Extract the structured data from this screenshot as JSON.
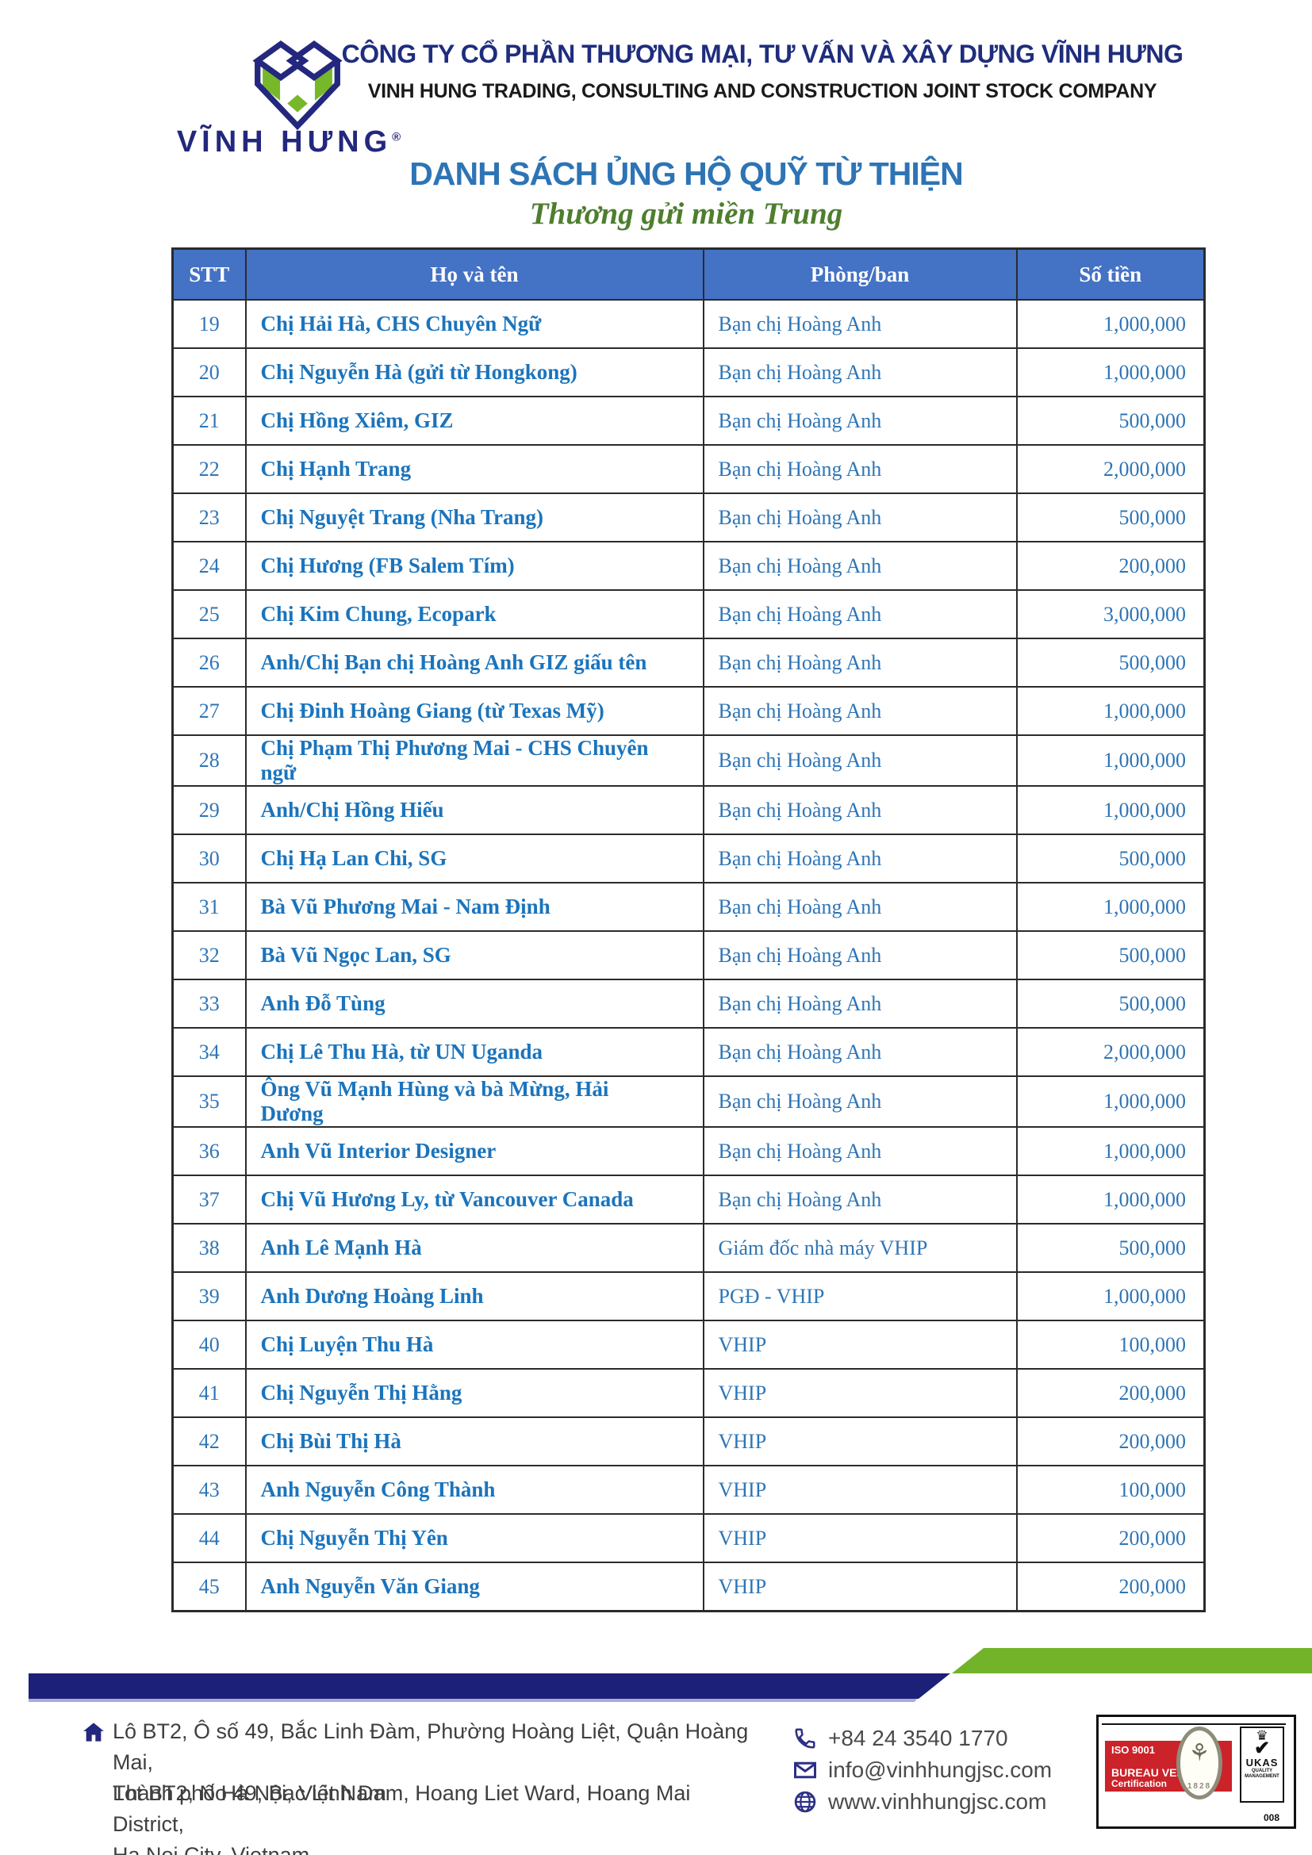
{
  "header": {
    "company_name_vi": "CÔNG TY CỔ PHẦN THƯƠNG MẠI, TƯ VẤN VÀ XÂY DỰNG VĨNH HƯNG",
    "company_name_en": "VINH HUNG TRADING, CONSULTING AND CONSTRUCTION JOINT STOCK COMPANY",
    "logo_text": "VĨNH HƯNG",
    "registered_mark": "®"
  },
  "title": "DANH SÁCH ỦNG HỘ QUỸ TỪ THIỆN",
  "subtitle": "Thương gửi miền Trung",
  "table": {
    "columns": [
      "STT",
      "Họ và tên",
      "Phòng/ban",
      "Số tiền"
    ],
    "rows": [
      {
        "stt": "19",
        "name": "Chị Hải Hà, CHS Chuyên Ngữ",
        "dept": "Bạn chị Hoàng Anh",
        "amount": "1,000,000"
      },
      {
        "stt": "20",
        "name": "Chị Nguyễn Hà (gửi từ Hongkong)",
        "dept": "Bạn chị Hoàng Anh",
        "amount": "1,000,000"
      },
      {
        "stt": "21",
        "name": "Chị Hồng Xiêm, GIZ",
        "dept": "Bạn chị Hoàng Anh",
        "amount": "500,000"
      },
      {
        "stt": "22",
        "name": "Chị Hạnh Trang",
        "dept": "Bạn chị Hoàng Anh",
        "amount": "2,000,000"
      },
      {
        "stt": "23",
        "name": "Chị Nguyệt Trang (Nha Trang)",
        "dept": "Bạn chị Hoàng Anh",
        "amount": "500,000"
      },
      {
        "stt": "24",
        "name": "Chị Hương (FB Salem Tím)",
        "dept": "Bạn chị Hoàng Anh",
        "amount": "200,000"
      },
      {
        "stt": "25",
        "name": "Chị Kim Chung, Ecopark",
        "dept": "Bạn chị Hoàng Anh",
        "amount": "3,000,000"
      },
      {
        "stt": "26",
        "name": "Anh/Chị Bạn chị Hoàng Anh GIZ giấu tên",
        "dept": "Bạn chị Hoàng Anh",
        "amount": "500,000"
      },
      {
        "stt": "27",
        "name": "Chị Đinh Hoàng Giang (từ Texas Mỹ)",
        "dept": "Bạn chị Hoàng Anh",
        "amount": "1,000,000"
      },
      {
        "stt": "28",
        "name": "Chị Phạm Thị Phương Mai - CHS Chuyên ngữ",
        "dept": "Bạn chị Hoàng Anh",
        "amount": "1,000,000"
      },
      {
        "stt": "29",
        "name": "Anh/Chị Hồng Hiếu",
        "dept": "Bạn chị Hoàng Anh",
        "amount": "1,000,000"
      },
      {
        "stt": "30",
        "name": "Chị Hạ Lan Chi, SG",
        "dept": "Bạn chị Hoàng Anh",
        "amount": "500,000"
      },
      {
        "stt": "31",
        "name": "Bà Vũ Phương Mai - Nam Định",
        "dept": "Bạn chị Hoàng Anh",
        "amount": "1,000,000"
      },
      {
        "stt": "32",
        "name": "Bà Vũ Ngọc Lan, SG",
        "dept": "Bạn chị Hoàng Anh",
        "amount": "500,000"
      },
      {
        "stt": "33",
        "name": "Anh Đỗ Tùng",
        "dept": "Bạn chị Hoàng Anh",
        "amount": "500,000"
      },
      {
        "stt": "34",
        "name": "Chị Lê Thu Hà, từ UN Uganda",
        "dept": "Bạn chị Hoàng Anh",
        "amount": "2,000,000"
      },
      {
        "stt": "35",
        "name": "Ông Vũ Mạnh Hùng và bà Mừng, Hải Dương",
        "dept": "Bạn chị Hoàng Anh",
        "amount": "1,000,000"
      },
      {
        "stt": "36",
        "name": "Anh Vũ Interior Designer",
        "dept": "Bạn chị Hoàng Anh",
        "amount": "1,000,000"
      },
      {
        "stt": "37",
        "name": "Chị Vũ Hương Ly, từ Vancouver Canada",
        "dept": "Bạn chị Hoàng Anh",
        "amount": "1,000,000"
      },
      {
        "stt": "38",
        "name": "Anh Lê Mạnh Hà",
        "dept": "Giám đốc nhà máy VHIP",
        "amount": "500,000"
      },
      {
        "stt": "39",
        "name": "Anh Dương Hoàng Linh",
        "dept": "PGĐ - VHIP",
        "amount": "1,000,000"
      },
      {
        "stt": "40",
        "name": "Chị Luyện Thu Hà",
        "dept": "VHIP",
        "amount": "100,000"
      },
      {
        "stt": "41",
        "name": "Chị Nguyễn Thị Hằng",
        "dept": "VHIP",
        "amount": "200,000"
      },
      {
        "stt": "42",
        "name": "Chị Bùi Thị Hà",
        "dept": "VHIP",
        "amount": "200,000"
      },
      {
        "stt": "43",
        "name": "Anh Nguyễn Công Thành",
        "dept": "VHIP",
        "amount": "100,000"
      },
      {
        "stt": "44",
        "name": "Chị Nguyễn Thị Yên",
        "dept": "VHIP",
        "amount": "200,000"
      },
      {
        "stt": "45",
        "name": "Anh Nguyễn Văn Giang",
        "dept": "VHIP",
        "amount": "200,000"
      }
    ]
  },
  "footer": {
    "address_vi_line1": "Lô BT2, Ô số 49, Bắc Linh Đàm, Phường Hoàng Liệt, Quận Hoàng Mai,",
    "address_vi_line2": "Thành phố Hà Nội, Việt Nam",
    "address_en_line1": "Lot BT2, No 49, Bac Linh Dam, Hoang Liet Ward, Hoang Mai District,",
    "address_en_line2": "Ha Noi City, Vietnam",
    "phone": "+84 24 3540 1770",
    "email": "info@vinhhungjsc.com",
    "website": "www.vinhhungjsc.com",
    "certification": {
      "iso": "ISO 9001",
      "bureau": "BUREAU VERITAS",
      "cert_label": "Certification",
      "emblem_year": "1828",
      "ukas": "UKAS",
      "ukas_sub1": "QUALITY",
      "ukas_sub2": "MANAGEMENT",
      "code": "008"
    }
  },
  "colors": {
    "navy": "#23277E",
    "stripe_navy": "#1C2078",
    "logo_green": "#76B82A",
    "stripe_green": "#72B32A",
    "title_blue": "#2E74B5",
    "subtitle_green": "#4E7E2E",
    "table_header_bg": "#4472C4",
    "name_blue": "#1B74BC",
    "cell_blue": "#2E75B6",
    "badge_red": "#CC2229"
  },
  "icons": {
    "logo": "vinh-hung-cube-logo",
    "house": "house-icon",
    "phone": "phone-icon",
    "email": "envelope-icon",
    "globe": "globe-icon"
  }
}
